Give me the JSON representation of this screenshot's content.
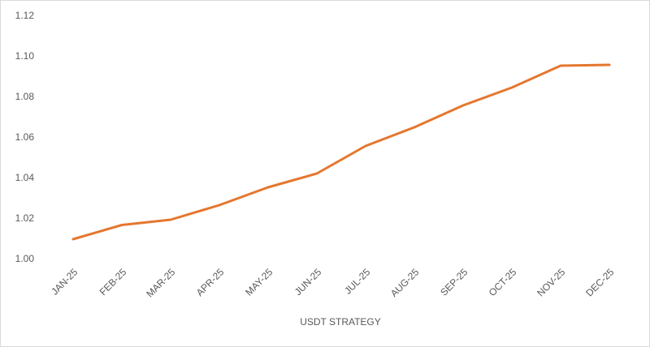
{
  "chart_data": {
    "type": "line",
    "x_label": "USDT STRATEGY",
    "categories": [
      "JAN-25",
      "FEB-25",
      "MAR-25",
      "APR-25",
      "MAY-25",
      "JUN-25",
      "JUL-25",
      "AUG-25",
      "SEP-25",
      "OCT-25",
      "NOV-25",
      "DEC-25"
    ],
    "series": [
      {
        "color": "#e4772f",
        "values": [
          1.01,
          1.017,
          1.0196,
          1.0268,
          1.0356,
          1.0424,
          1.056,
          1.0652,
          1.076,
          1.0848,
          1.0956,
          1.096
        ]
      }
    ],
    "ylim": [
      1.0,
      1.12
    ],
    "yticks": [
      {
        "value": 1.0,
        "label": "1.00"
      },
      1.02,
      1.04,
      1.06,
      1.08,
      {
        "value": 1.1,
        "label": "1.10"
      },
      1.12
    ],
    "grid": false
  }
}
